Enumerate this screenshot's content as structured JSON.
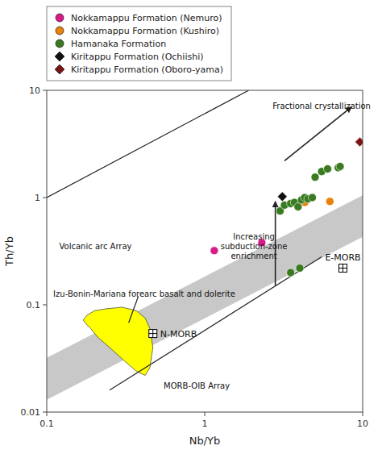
{
  "chart_data": {
    "type": "scatter",
    "x_label": "Nb/Yb",
    "y_label": "Th/Yb",
    "log": true,
    "xlim": [
      0.1,
      10
    ],
    "ylim": [
      0.01,
      10
    ],
    "xticks": [
      0.1,
      1,
      10
    ],
    "yticks": [
      0.01,
      0.1,
      1,
      10
    ],
    "grid": false,
    "legend": "top",
    "series": [
      {
        "name": "Nokkamappu Formation (Nemuro)",
        "color": "#d81b8a",
        "marker": "circle",
        "x": [
          1.15,
          2.3
        ],
        "values": [
          0.32,
          0.38
        ]
      },
      {
        "name": "Nokkamappu Formation (Kushiro)",
        "color": "#e8820a",
        "marker": "circle",
        "x": [
          4.3,
          6.2
        ],
        "values": [
          0.9,
          0.92
        ]
      },
      {
        "name": "Hamanaka Formation",
        "color": "#3a7a20",
        "marker": "circle",
        "x": [
          3.0,
          3.2,
          3.5,
          3.7,
          3.9,
          4.1,
          4.3,
          4.5,
          4.8,
          5.0,
          5.5,
          6.0,
          7.0,
          7.2,
          3.5,
          4.0
        ],
        "values": [
          0.75,
          0.85,
          0.88,
          0.9,
          0.82,
          0.95,
          1.0,
          0.97,
          1.0,
          1.55,
          1.75,
          1.85,
          1.9,
          1.95,
          0.2,
          0.22
        ]
      },
      {
        "name": "Kiritappu Formation (Ochiishi)",
        "color": "#111111",
        "marker": "diamond",
        "x": [
          3.1
        ],
        "values": [
          1.02
        ]
      },
      {
        "name": "Kiritappu Formation (Oboro-yama)",
        "color": "#7b1515",
        "marker": "diamond",
        "x": [
          9.6
        ],
        "values": [
          3.3
        ]
      }
    ],
    "regions": [
      {
        "color": "#c8c8c8",
        "x": [
          0.1,
          10,
          10,
          0.1
        ],
        "y": [
          0.013,
          0.43,
          1.05,
          0.032
        ]
      },
      {
        "color": "yellow",
        "x": [
          0.19,
          0.21,
          0.25,
          0.31,
          0.37,
          0.42,
          0.45,
          0.47,
          0.45,
          0.42,
          0.37,
          0.3,
          0.24,
          0.2,
          0.18,
          0.17,
          0.18,
          0.19
        ],
        "y": [
          0.06,
          0.05,
          0.04,
          0.03,
          0.024,
          0.022,
          0.026,
          0.04,
          0.06,
          0.075,
          0.088,
          0.095,
          0.092,
          0.088,
          0.08,
          0.072,
          0.065,
          0.06
        ]
      }
    ],
    "lines": [
      {
        "x": [
          0.25,
          5.5
        ],
        "y": [
          0.016,
          0.28
        ]
      },
      {
        "x": [
          0.1,
          1.9
        ],
        "y": [
          1.0,
          10
        ]
      },
      {
        "x": [
          0.38,
          0.33
        ],
        "y": [
          0.12,
          0.068
        ]
      }
    ],
    "arrows": [
      {
        "x": [
          3.2,
          8.5
        ],
        "y": [
          2.2,
          7.0
        ]
      },
      {
        "x": [
          2.8,
          2.8
        ],
        "y": [
          0.15,
          0.92
        ]
      }
    ],
    "reference_points": [
      {
        "label": "N-MORB",
        "x": 0.47,
        "y": 0.054
      },
      {
        "label": "E-MORB",
        "x": 7.5,
        "y": 0.22
      }
    ],
    "annotations": [
      {
        "text": "Fractional crystallization",
        "x": 5.5,
        "y": 6.5
      },
      {
        "text": "Increasing\nsubduction-zone\nenrichment",
        "x": 2.05,
        "y": 0.35
      },
      {
        "text": "Volcanic arc Array",
        "x": 0.12,
        "y": 0.32
      },
      {
        "text": "MORB-OIB Array",
        "x": 0.55,
        "y": 0.016
      },
      {
        "text": "Izu-Bonin-Mariana forearc basalt and dolerite",
        "x": 0.11,
        "y": 0.115
      }
    ]
  }
}
